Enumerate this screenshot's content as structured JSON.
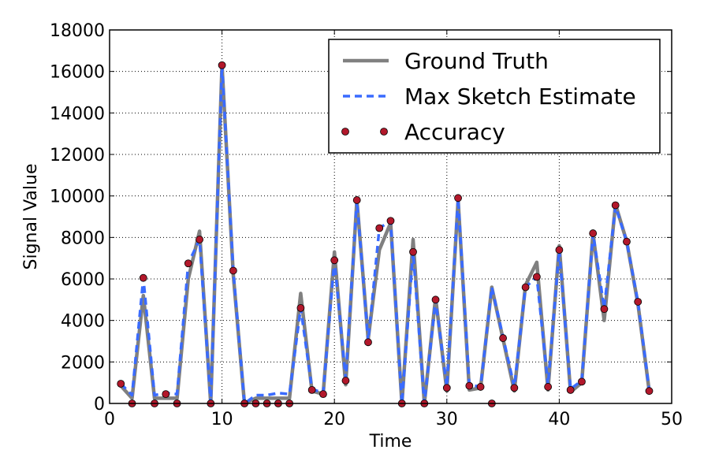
{
  "chart_data": {
    "type": "line",
    "xlabel": "Time",
    "ylabel": "Signal Value",
    "xlim": [
      0,
      50
    ],
    "ylim": [
      0,
      18000
    ],
    "xticks": [
      0,
      10,
      20,
      30,
      40,
      50
    ],
    "yticks": [
      0,
      2000,
      4000,
      6000,
      8000,
      10000,
      12000,
      14000,
      16000,
      18000
    ],
    "grid": true,
    "legend_position": "top-right",
    "x": [
      1,
      2,
      3,
      4,
      5,
      6,
      7,
      8,
      9,
      10,
      11,
      12,
      13,
      14,
      15,
      16,
      17,
      18,
      19,
      20,
      21,
      22,
      23,
      24,
      25,
      26,
      27,
      28,
      29,
      30,
      31,
      32,
      33,
      34,
      35,
      36,
      37,
      38,
      39,
      40,
      41,
      42,
      43,
      44,
      45,
      46,
      47,
      48
    ],
    "series": [
      {
        "name": "Ground Truth",
        "style": "solid",
        "color": "#808080",
        "values": [
          850,
          250,
          5200,
          250,
          250,
          250,
          6000,
          8300,
          0,
          16300,
          6200,
          0,
          250,
          250,
          250,
          250,
          5300,
          600,
          450,
          7300,
          900,
          9800,
          3100,
          7400,
          8700,
          0,
          7900,
          0,
          5100,
          600,
          9800,
          650,
          750,
          5600,
          3100,
          600,
          5700,
          6800,
          650,
          7600,
          550,
          1000,
          8200,
          4000,
          9600,
          7800,
          4800,
          600
        ]
      },
      {
        "name": "Max Sketch Estimate",
        "style": "dashed",
        "color": "#3a6bff",
        "values": [
          950,
          400,
          6050,
          400,
          500,
          450,
          6750,
          7900,
          0,
          16300,
          6400,
          0,
          400,
          400,
          500,
          450,
          4600,
          700,
          500,
          6900,
          1200,
          9800,
          3000,
          8450,
          8800,
          0,
          7300,
          0,
          5000,
          800,
          9900,
          900,
          800,
          5600,
          3200,
          800,
          5600,
          6100,
          900,
          7400,
          700,
          1100,
          8200,
          4600,
          9500,
          7800,
          4900,
          650
        ]
      },
      {
        "name": "Accuracy",
        "style": "markers",
        "color": "#b2182b",
        "values": [
          950,
          0,
          6050,
          0,
          450,
          0,
          6750,
          7900,
          0,
          16300,
          6400,
          0,
          0,
          0,
          0,
          0,
          4600,
          650,
          450,
          6900,
          1100,
          9800,
          2950,
          8450,
          8800,
          0,
          7300,
          0,
          5000,
          750,
          9900,
          850,
          800,
          0,
          3150,
          750,
          5600,
          6100,
          800,
          7400,
          650,
          1050,
          8200,
          4550,
          9550,
          7800,
          4900,
          600
        ]
      }
    ]
  }
}
